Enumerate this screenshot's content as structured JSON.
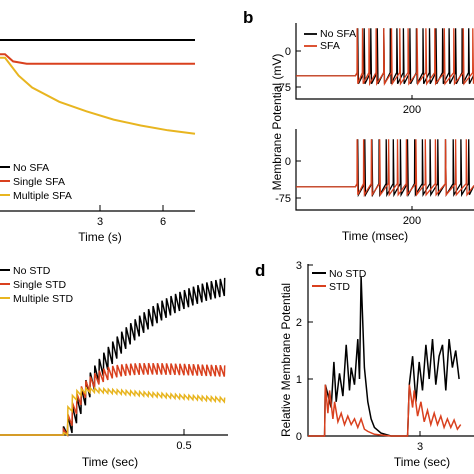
{
  "colors": {
    "none": "#000000",
    "single": "#d9401e",
    "multiple": "#e8b520"
  },
  "panel_b": {
    "label": "b"
  },
  "panel_d": {
    "label": "d"
  },
  "chart_data": [
    {
      "panel": "a-top",
      "type": "line",
      "xlabel": "Time (s)",
      "x_ticks": [
        "3",
        "6"
      ],
      "legend": [
        "No SFA",
        "Single SFA",
        "Multiple SFA"
      ],
      "legend_position": "bottom-left",
      "series": [
        {
          "name": "No SFA",
          "color": "#000000",
          "x": [
            0,
            7
          ],
          "y": [
            1,
            1
          ]
        },
        {
          "name": "Single SFA",
          "color": "#d9401e",
          "x": [
            0,
            0.3,
            0.8,
            7
          ],
          "y": [
            0.88,
            0.82,
            0.8,
            0.8
          ]
        },
        {
          "name": "Multiple SFA",
          "color": "#e8b520",
          "x": [
            0,
            0.5,
            1,
            2,
            3,
            4,
            5,
            6,
            7
          ],
          "y": [
            0.85,
            0.7,
            0.6,
            0.48,
            0.4,
            0.33,
            0.28,
            0.24,
            0.21
          ]
        }
      ]
    },
    {
      "panel": "b-top",
      "type": "line",
      "ylabel": "Membrane Potential (mV)",
      "y_ticks": [
        "0",
        "-75"
      ],
      "x_ticks": [
        "200"
      ],
      "xlim": [
        0,
        300
      ],
      "ylim": [
        -95,
        20
      ],
      "legend": [
        "No SFA",
        "SFA"
      ],
      "legend_position": "top-left",
      "rest_mv": -60,
      "peak_mv": 12,
      "stim_onset_ms": 100,
      "series": [
        {
          "name": "No SFA",
          "color": "#000000",
          "spike_times_ms": [
            104,
            115,
            126,
            137,
            148,
            159,
            170,
            181,
            192,
            203,
            214,
            225,
            236,
            247,
            258,
            269,
            280,
            291
          ]
        },
        {
          "name": "SFA",
          "color": "#d9401e",
          "spike_times_ms": [
            103,
            112,
            123,
            135,
            148,
            161,
            175,
            189,
            204,
            219,
            234,
            250,
            266,
            282,
            298
          ]
        }
      ]
    },
    {
      "panel": "b-bottom",
      "type": "line",
      "y_ticks": [
        "0",
        "-75"
      ],
      "x_ticks": [
        "200"
      ],
      "xlim": [
        0,
        300
      ],
      "ylim": [
        -95,
        20
      ],
      "xlabel": "Time (msec)",
      "rest_mv": -60,
      "peak_mv": 12,
      "series": [
        {
          "name": "No SFA",
          "color": "#000000",
          "spike_times_ms": [
            104,
            116,
            128,
            140,
            152,
            164,
            176,
            188,
            200,
            213,
            226,
            239,
            252,
            265,
            278,
            291
          ]
        },
        {
          "name": "SFA",
          "color": "#d9401e",
          "spike_times_ms": [
            103,
            114,
            127,
            141,
            156,
            171,
            186,
            202,
            218,
            235,
            252,
            269,
            287
          ]
        }
      ]
    },
    {
      "panel": "c",
      "type": "line",
      "xlabel": "Time (sec)",
      "x_ticks": [
        "0.5"
      ],
      "xlim": [
        -0.05,
        0.7
      ],
      "ylim": [
        0,
        1
      ],
      "legend": [
        "No STD",
        "Single STD",
        "Multiple STD"
      ],
      "legend_position": "top-left",
      "onset_s": 0.12,
      "series": [
        {
          "name": "No STD",
          "color": "#000000",
          "asymptote": 0.86,
          "tau": 0.18,
          "ripple": 0.045,
          "decay": 0
        },
        {
          "name": "Single STD",
          "color": "#d9401e",
          "asymptote": 0.37,
          "tau": 0.05,
          "ripple": 0.03,
          "decay": 0.22
        },
        {
          "name": "Multiple STD",
          "color": "#e8b520",
          "asymptote": 0.25,
          "tau": 0.015,
          "ripple": 0.012,
          "decay": 0.7
        }
      ]
    },
    {
      "panel": "d",
      "type": "line",
      "ylabel": "Relative Membrane Potential",
      "xlabel": "Time (sec)",
      "y_ticks": [
        "0",
        "1",
        "2",
        "3"
      ],
      "x_ticks": [
        "3"
      ],
      "xlim": [
        0,
        5
      ],
      "ylim": [
        0,
        3
      ],
      "legend": [
        "No STD",
        "STD"
      ],
      "legend_position": "top-left",
      "series": [
        {
          "name": "No STD",
          "color": "#000000",
          "x": [
            0,
            0.5,
            0.52,
            0.7,
            0.78,
            0.85,
            0.95,
            1.05,
            1.15,
            1.25,
            1.3,
            1.4,
            1.5,
            1.55,
            1.6,
            1.7,
            1.8,
            1.9,
            2.0,
            2.2,
            2.5,
            3.0,
            3.05,
            3.15,
            3.25,
            3.35,
            3.45,
            3.55,
            3.65,
            3.75,
            3.85,
            3.95,
            4.05,
            4.15,
            4.25,
            4.35,
            4.45,
            4.55
          ],
          "y": [
            0,
            0,
            0.9,
            0.5,
            1.3,
            0.6,
            1.1,
            0.7,
            1.6,
            0.8,
            1.2,
            0.9,
            1.7,
            1.0,
            2.8,
            1.2,
            0.6,
            0.3,
            0.15,
            0.05,
            0,
            0,
            0.9,
            1.4,
            0.6,
            1.3,
            0.8,
            1.6,
            1.0,
            1.7,
            0.9,
            1.4,
            1.6,
            0.8,
            1.7,
            1.2,
            1.5,
            1.0
          ]
        },
        {
          "name": "STD",
          "color": "#d9401e",
          "x": [
            0,
            0.5,
            0.52,
            0.6,
            0.65,
            0.75,
            0.8,
            0.9,
            1.0,
            1.1,
            1.2,
            1.3,
            1.4,
            1.5,
            1.6,
            1.7,
            1.8,
            2.0,
            2.5,
            3.0,
            3.05,
            3.15,
            3.2,
            3.3,
            3.4,
            3.5,
            3.6,
            3.7,
            3.8,
            3.9,
            4.0,
            4.1,
            4.2,
            4.3,
            4.4,
            4.5,
            4.6
          ],
          "y": [
            0,
            0,
            0.9,
            0.4,
            0.8,
            0.3,
            0.6,
            0.25,
            0.4,
            0.2,
            0.35,
            0.2,
            0.3,
            0.15,
            0.3,
            0.12,
            0.08,
            0.03,
            0,
            0,
            0.9,
            0.5,
            0.8,
            0.35,
            0.6,
            0.25,
            0.45,
            0.2,
            0.4,
            0.2,
            0.35,
            0.15,
            0.3,
            0.15,
            0.28,
            0.12,
            0.2
          ]
        }
      ]
    }
  ]
}
